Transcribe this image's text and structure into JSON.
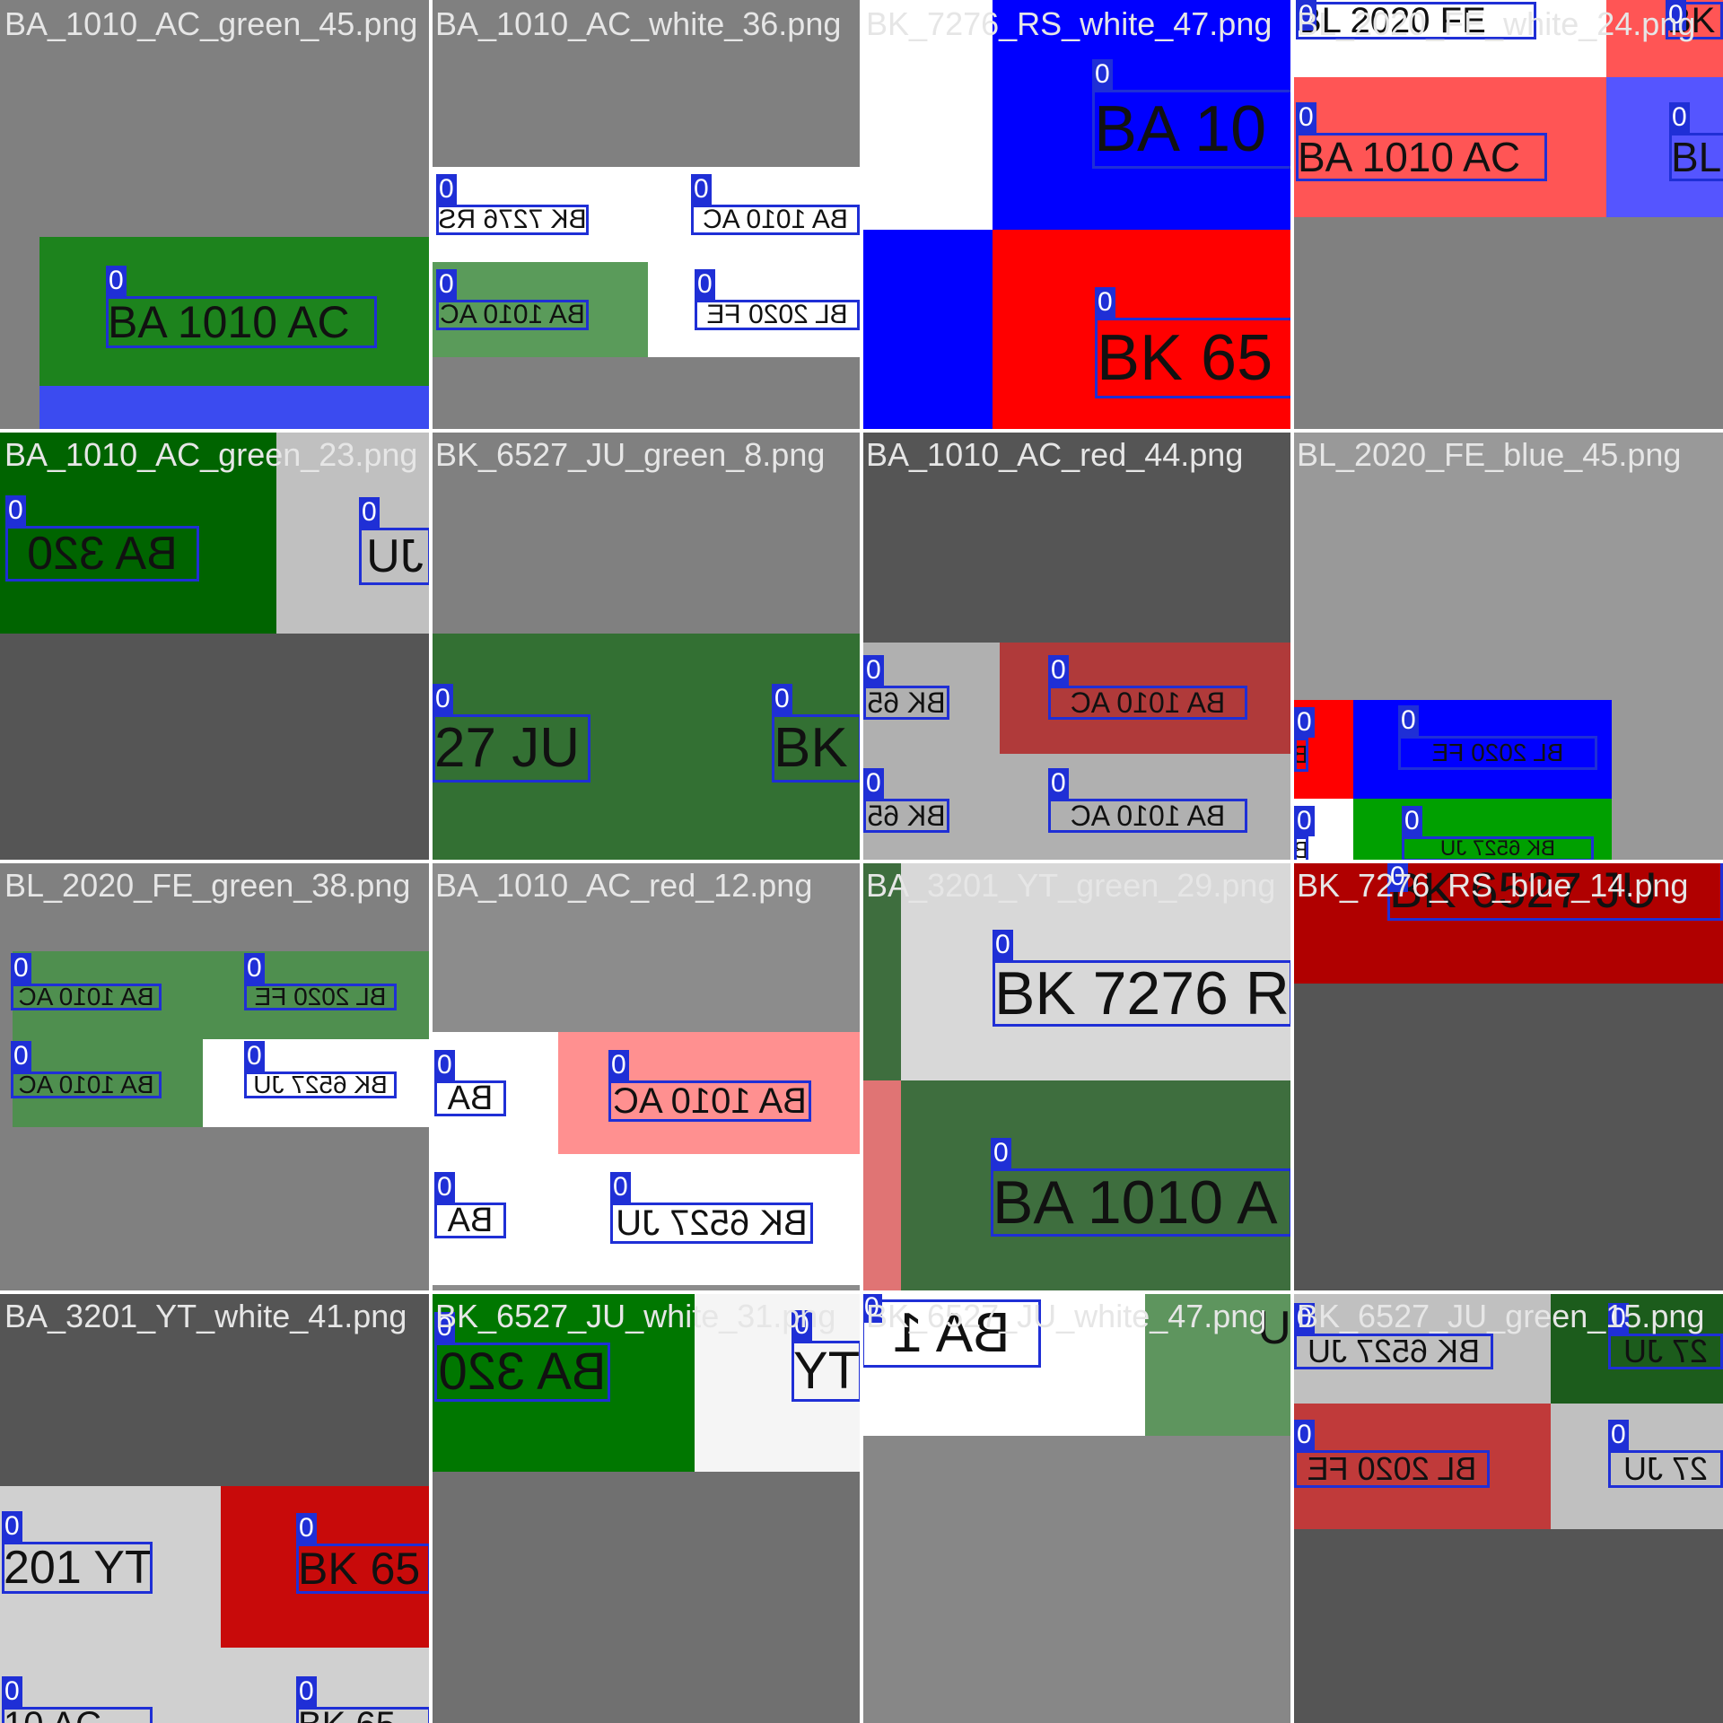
{
  "mosaic": {
    "tiles": [
      {
        "title": "BA_1010_AC_green_45.png",
        "title_color": "#e6e6e6",
        "plates": [
          {
            "text": "BA 1010 AC",
            "label": "0",
            "color": "#1d831d",
            "mirrored": false
          }
        ]
      },
      {
        "title": "BA_1010_AC_white_36.png",
        "title_color": "#e6e6e6",
        "plates": [
          {
            "text": "BK 7276 RS",
            "label": "0",
            "color": "#ffffff",
            "mirrored": true
          },
          {
            "text": "BA 1010 AC",
            "label": "0",
            "color": "#ffffff",
            "mirrored": true
          },
          {
            "text": "BA 1010 AC",
            "label": "0",
            "color": "#5a9b5a",
            "mirrored": true
          },
          {
            "text": "BL 2020 FE",
            "label": "0",
            "color": "#ffffff",
            "mirrored": true
          }
        ]
      },
      {
        "title": "BK_7276_RS_white_47.png",
        "title_color": "#e6e6e6",
        "plates": [
          {
            "text": "BA 10",
            "label": "0",
            "color": "#0000ff",
            "mirrored": false
          },
          {
            "text": "BK 65",
            "label": "0",
            "color": "#ff0000",
            "mirrored": false
          }
        ]
      },
      {
        "title": "BL_2020_FE_white_24.png",
        "title_color": "#e6e6e6",
        "plates": [
          {
            "text": "BL 2020 FE",
            "label": "0",
            "color": "#ffffff",
            "mirrored": false
          },
          {
            "text": "BK",
            "label": "0",
            "color": "#ff5555",
            "mirrored": false
          },
          {
            "text": "BA 1010 AC",
            "label": "0",
            "color": "#ff5555",
            "mirrored": false
          },
          {
            "text": "BL",
            "label": "0",
            "color": "#5555ff",
            "mirrored": false
          }
        ]
      },
      {
        "title": "BA_1010_AC_green_23.png",
        "title_color": "#e6e6e6",
        "plates": [
          {
            "text": "BA 320",
            "label": "0",
            "color": "#006400",
            "mirrored": true
          },
          {
            "text": "JU",
            "label": "0",
            "color": "#c0c0c0",
            "mirrored": true
          }
        ]
      },
      {
        "title": "BK_6527_JU_green_8.png",
        "title_color": "#e6e6e6",
        "plates": [
          {
            "text": "27 JU",
            "label": "0",
            "color": "#337033",
            "mirrored": false
          },
          {
            "text": "BK",
            "label": "0",
            "color": "#337033",
            "mirrored": false
          }
        ]
      },
      {
        "title": "BA_1010_AC_red_44.png",
        "title_color": "#e6e6e6",
        "plates": [
          {
            "text": "BK 65",
            "label": "0",
            "color": "#b0b0b0",
            "mirrored": true
          },
          {
            "text": "BA 1010 AC",
            "label": "0",
            "color": "#b03a3a",
            "mirrored": true
          },
          {
            "text": "BK 65",
            "label": "0",
            "color": "#b0b0b0",
            "mirrored": true
          },
          {
            "text": "BA 1010 AC",
            "label": "0",
            "color": "#b0b0b0",
            "mirrored": true
          }
        ]
      },
      {
        "title": "BL_2020_FE_blue_45.png",
        "title_color": "#e6e6e6",
        "plates": [
          {
            "text": "B",
            "label": "0",
            "color": "#ff0000",
            "mirrored": true
          },
          {
            "text": "BL 2020 FE",
            "label": "0",
            "color": "#0000ff",
            "mirrored": true
          },
          {
            "text": "B",
            "label": "0",
            "color": "#ffffff",
            "mirrored": true
          },
          {
            "text": "BK 6527 JU",
            "label": "0",
            "color": "#00a000",
            "mirrored": true
          }
        ]
      },
      {
        "title": "BL_2020_FE_green_38.png",
        "title_color": "#e6e6e6",
        "plates": [
          {
            "text": "BA 1010 AC",
            "label": "0",
            "color": "#4f8f4f",
            "mirrored": true
          },
          {
            "text": "BL 2020 FE",
            "label": "0",
            "color": "#4f8f4f",
            "mirrored": true
          },
          {
            "text": "BA 1010 AC",
            "label": "0",
            "color": "#4f8f4f",
            "mirrored": true
          },
          {
            "text": "BK 6527 JU",
            "label": "0",
            "color": "#ffffff",
            "mirrored": true
          }
        ]
      },
      {
        "title": "BA_1010_AC_red_12.png",
        "title_color": "#e6e6e6",
        "plates": [
          {
            "text": "BA",
            "label": "0",
            "color": "#ffffff",
            "mirrored": true
          },
          {
            "text": "BA 1010 AC",
            "label": "0",
            "color": "#ff9090",
            "mirrored": true
          },
          {
            "text": "BA",
            "label": "0",
            "color": "#ffffff",
            "mirrored": true
          },
          {
            "text": "BK 6527 JU",
            "label": "0",
            "color": "#ffffff",
            "mirrored": true
          }
        ]
      },
      {
        "title": "BA_3201_YT_green_29.png",
        "title_color": "#e6e6e6",
        "plates": [
          {
            "text": "BK 7276 R",
            "label": "0",
            "color": "#d8d8d8",
            "mirrored": false
          },
          {
            "text": "BA 1010 A",
            "label": "0",
            "color": "#3e6e3e",
            "mirrored": false
          }
        ]
      },
      {
        "title": "BK_7276_RS_blue_14.png",
        "title_color": "#e6e6e6",
        "plates": [
          {
            "text": "BK 6527 JU",
            "label": "0",
            "color": "#b00000",
            "mirrored": false
          }
        ]
      },
      {
        "title": "BA_3201_YT_white_41.png",
        "title_color": "#e6e6e6",
        "plates": [
          {
            "text": "201 YT",
            "label": "0",
            "color": "#d0d0d0",
            "mirrored": false
          },
          {
            "text": "BK 65",
            "label": "0",
            "color": "#c80a0a",
            "mirrored": false
          },
          {
            "text": "10 AC",
            "label": "0",
            "color": "#d0d0d0",
            "mirrored": false
          },
          {
            "text": "BK 65",
            "label": "0",
            "color": "#d0d0d0",
            "mirrored": false
          }
        ]
      },
      {
        "title": "BK_6527_JU_white_31.png",
        "title_color": "#e6e6e6",
        "plates": [
          {
            "text": "BA 320",
            "label": "0",
            "color": "#007700",
            "mirrored": true
          },
          {
            "text": "TY",
            "label": "0",
            "color": "#f5f5f5",
            "mirrored": true
          }
        ]
      },
      {
        "title": "BK_6527_JU_white_47.png",
        "title_color": "#e6e6e6",
        "plates": [
          {
            "text": "BA 1",
            "label": "0",
            "color": "#ffffff",
            "mirrored": true
          },
          {
            "text": "U",
            "label": "",
            "color": "#5e955e",
            "mirrored": true
          }
        ]
      },
      {
        "title": "BK_6527_JU_green_15.png",
        "title_color": "#e6e6e6",
        "plates": [
          {
            "text": "BK 6527 JU",
            "label": "0",
            "color": "#c0c0c0",
            "mirrored": true
          },
          {
            "text": "27 JU",
            "label": "0",
            "color": "#1c5c1c",
            "mirrored": true
          },
          {
            "text": "BL 2020 FE",
            "label": "0",
            "color": "#c03a3a",
            "mirrored": true
          },
          {
            "text": "27 JU",
            "label": "0",
            "color": "#c0c0c0",
            "mirrored": true
          }
        ]
      }
    ]
  }
}
